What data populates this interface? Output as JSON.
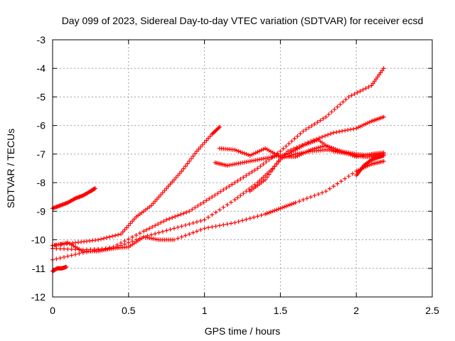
{
  "chart_data": {
    "type": "scatter",
    "title": "Day 099 of 2023, Sidereal Day-to-day VTEC variation (SDTVAR) for receiver ecsd",
    "xlabel": "GPS time / hours",
    "ylabel": "SDTVAR / TECUs",
    "xlim": [
      0,
      2.5
    ],
    "ylim": [
      -12,
      -3
    ],
    "xticks": [
      0,
      0.5,
      1,
      1.5,
      2,
      2.5
    ],
    "xtick_labels": [
      "0",
      "0.5",
      "1",
      "1.5",
      "2",
      "2.5"
    ],
    "yticks": [
      -12,
      -11,
      -10,
      -9,
      -8,
      -7,
      -6,
      -5,
      -4,
      -3
    ],
    "ytick_labels": [
      "-12",
      "-11",
      "-10",
      "-9",
      "-8",
      "-7",
      "-6",
      "-5",
      "-4",
      "-3"
    ],
    "grid": true,
    "legend": "none",
    "marker": "plus",
    "color": "#ff0000",
    "series": [
      {
        "x": [
          0,
          0.05,
          0.1,
          0.15,
          0.2,
          0.25,
          0.28
        ],
        "y": [
          -8.9,
          -8.8,
          -8.7,
          -8.55,
          -8.45,
          -8.3,
          -8.2
        ]
      },
      {
        "x": [
          0,
          0.03,
          0.06,
          0.09
        ],
        "y": [
          -11.1,
          -11.0,
          -11.0,
          -10.95
        ]
      },
      {
        "x": [
          0,
          0.15,
          0.3,
          0.45,
          0.55,
          0.65,
          0.75,
          0.85,
          0.95,
          1.05,
          1.1
        ],
        "y": [
          -10.2,
          -10.1,
          -10.0,
          -9.8,
          -9.2,
          -8.8,
          -8.2,
          -7.6,
          -6.9,
          -6.3,
          -6.05
        ]
      },
      {
        "x": [
          0,
          0.2,
          0.4,
          0.6,
          0.75,
          0.9,
          1.05,
          1.2,
          1.35,
          1.5,
          1.65,
          1.8,
          1.95,
          2.1,
          2.18
        ],
        "y": [
          -10.7,
          -10.45,
          -10.25,
          -9.7,
          -9.3,
          -9.0,
          -8.5,
          -8.0,
          -7.5,
          -6.9,
          -6.2,
          -5.7,
          -5.0,
          -4.6,
          -4.0
        ]
      },
      {
        "x": [
          0,
          0.2,
          0.4,
          0.6,
          0.8,
          1.0,
          1.2,
          1.35,
          1.45,
          1.55,
          1.7,
          1.85,
          2.0,
          2.1,
          2.18
        ],
        "y": [
          -10.3,
          -10.35,
          -10.3,
          -9.9,
          -9.6,
          -9.3,
          -8.6,
          -8.0,
          -7.5,
          -6.9,
          -6.55,
          -6.25,
          -6.1,
          -5.85,
          -5.7
        ]
      },
      {
        "x": [
          0,
          0.1,
          0.2,
          0.3,
          0.4,
          0.5,
          0.6,
          0.7,
          0.8,
          1.0,
          1.2,
          1.4,
          1.5,
          1.6,
          1.8,
          2.0,
          2.1,
          2.18
        ],
        "y": [
          -10.2,
          -10.1,
          -10.4,
          -10.4,
          -10.3,
          -10.25,
          -9.9,
          -10.0,
          -10.0,
          -9.6,
          -9.4,
          -9.1,
          -8.9,
          -8.7,
          -8.3,
          -7.6,
          -7.35,
          -7.25
        ]
      },
      {
        "x": [
          1.1,
          1.2,
          1.3,
          1.4,
          1.5,
          1.6,
          1.7,
          1.8,
          1.9,
          2.0,
          2.1,
          2.18
        ],
        "y": [
          -6.8,
          -6.85,
          -7.05,
          -6.8,
          -7.1,
          -7.1,
          -6.85,
          -6.7,
          -6.9,
          -7.1,
          -7.0,
          -6.95
        ]
      },
      {
        "x": [
          1.07,
          1.15,
          1.25,
          1.35,
          1.45,
          1.55,
          1.65,
          1.75,
          1.85,
          1.95,
          2.05,
          2.15
        ],
        "y": [
          -7.3,
          -7.4,
          -7.3,
          -7.2,
          -7.1,
          -7.0,
          -6.7,
          -6.5,
          -6.9,
          -7.0,
          -7.1,
          -7.1
        ]
      },
      {
        "x": [
          1.3,
          1.4,
          1.5,
          1.6,
          1.7,
          1.8,
          1.9,
          2.0,
          2.1,
          2.18
        ],
        "y": [
          -8.3,
          -7.9,
          -7.15,
          -7.0,
          -6.9,
          -6.85,
          -6.9,
          -7.0,
          -7.05,
          -7.0
        ]
      },
      {
        "x": [
          2.0,
          2.05,
          2.1,
          2.15,
          2.18
        ],
        "y": [
          -7.75,
          -7.4,
          -7.2,
          -7.1,
          -7.05
        ]
      }
    ]
  }
}
